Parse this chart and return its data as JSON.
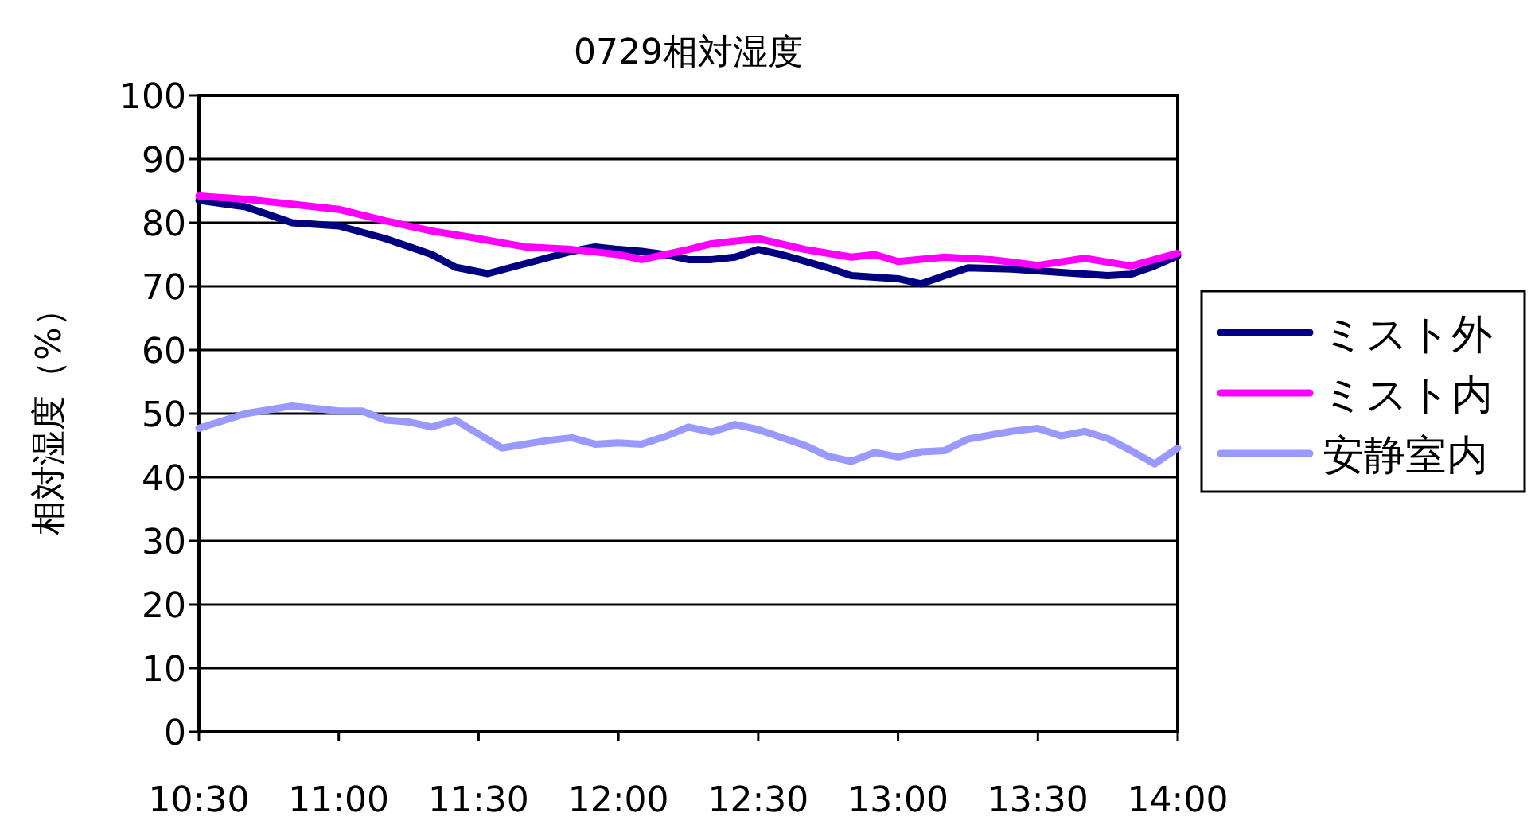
{
  "chart_data": {
    "type": "line",
    "title": "0729相対湿度",
    "ylabel": "相対湿度（%）",
    "xlim": [
      10.5,
      14
    ],
    "xticks": [
      {
        "value": 10.5,
        "label": "10:30"
      },
      {
        "value": 11,
        "label": "11:00"
      },
      {
        "value": 11.5,
        "label": "11:30"
      },
      {
        "value": 12,
        "label": "12:00"
      },
      {
        "value": 12.5,
        "label": "12:30"
      },
      {
        "value": 13,
        "label": "13:00"
      },
      {
        "value": 13.5,
        "label": "13:30"
      },
      {
        "value": 14,
        "label": "14:00"
      }
    ],
    "ylim": [
      0,
      100
    ],
    "yticks": [
      0,
      10,
      20,
      30,
      40,
      50,
      60,
      70,
      80,
      90,
      100
    ],
    "grid": "y",
    "legend": "right",
    "marker": "none",
    "line_style": "solid",
    "series": [
      {
        "name": "ミスト外",
        "color": "#000080",
        "x": [
          10.5,
          10.667,
          10.833,
          11,
          11.167,
          11.333,
          11.417,
          11.533,
          11.833,
          11.917,
          12,
          12.083,
          12.167,
          12.25,
          12.333,
          12.417,
          12.5,
          12.583,
          12.75,
          12.833,
          13,
          13.083,
          13.167,
          13.25,
          13.417,
          13.583,
          13.75,
          13.833,
          13.917,
          14
        ],
        "values": [
          83.5,
          82.5,
          80,
          79.5,
          77.5,
          75,
          73,
          72,
          75.5,
          76.2,
          75.8,
          75.5,
          75,
          74.2,
          74.2,
          74.6,
          75.8,
          75,
          72.9,
          71.7,
          71.2,
          70.4,
          71.7,
          72.9,
          72.7,
          72.2,
          71.7,
          71.9,
          73.2,
          74.8
        ]
      },
      {
        "name": "ミスト内",
        "color": "#ff00ff",
        "x": [
          10.5,
          10.667,
          10.833,
          11,
          11.167,
          11.333,
          11.5,
          11.667,
          11.833,
          12,
          12.083,
          12.25,
          12.333,
          12.5,
          12.667,
          12.833,
          12.917,
          13,
          13.167,
          13.333,
          13.5,
          13.667,
          13.833,
          14
        ],
        "values": [
          84.2,
          83.7,
          82.9,
          82.1,
          80.3,
          78.7,
          77.5,
          76.2,
          75.8,
          75,
          74.2,
          75.8,
          76.7,
          77.5,
          75.8,
          74.6,
          75,
          73.9,
          74.6,
          74.2,
          73.3,
          74.4,
          73.2,
          75.2
        ]
      },
      {
        "name": "安静室内",
        "color": "#9999ff",
        "x": [
          10.5,
          10.667,
          10.833,
          11,
          11.083,
          11.167,
          11.25,
          11.333,
          11.417,
          11.583,
          11.75,
          11.833,
          11.917,
          12,
          12.083,
          12.167,
          12.25,
          12.333,
          12.417,
          12.5,
          12.667,
          12.75,
          12.833,
          12.917,
          13,
          13.083,
          13.167,
          13.25,
          13.417,
          13.5,
          13.583,
          13.667,
          13.75,
          13.833,
          13.917,
          14
        ],
        "values": [
          47.7,
          50,
          51.2,
          50.4,
          50.4,
          49,
          48.7,
          47.9,
          49,
          44.6,
          45.8,
          46.2,
          45.2,
          45.4,
          45.2,
          46.4,
          47.9,
          47.1,
          48.3,
          47.5,
          45,
          43.3,
          42.5,
          43.9,
          43.2,
          44,
          44.2,
          46,
          47.3,
          47.7,
          46.5,
          47.2,
          46.1,
          44.2,
          42.1,
          44.6
        ]
      }
    ]
  }
}
